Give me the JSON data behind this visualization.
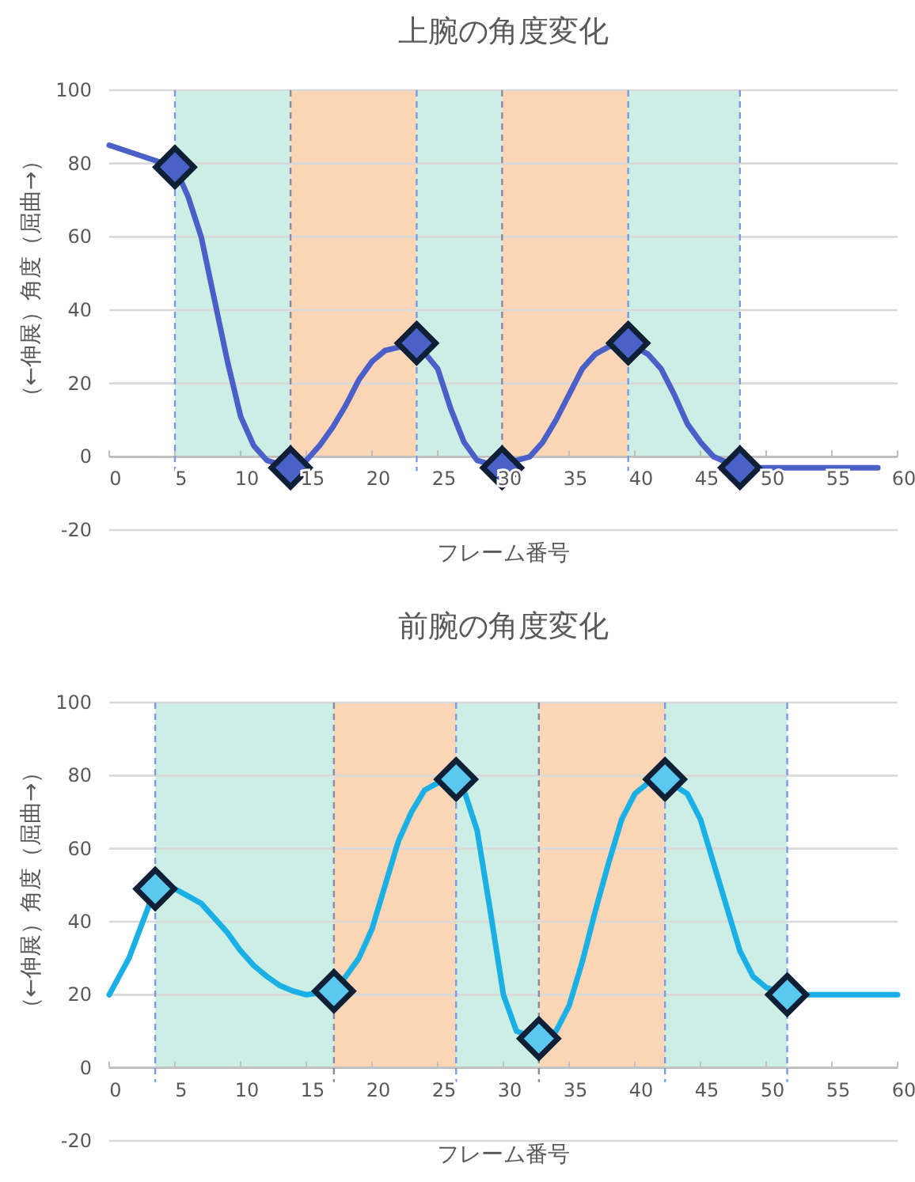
{
  "chart_data": [
    {
      "type": "line",
      "title": "上腕の角度変化",
      "xlabel": "フレーム番号",
      "ylabel": "（←伸展）角度（屈曲→）",
      "xlim": [
        0,
        60
      ],
      "xticks": [
        0,
        5,
        10,
        15,
        20,
        25,
        30,
        35,
        40,
        45,
        50,
        55,
        60
      ],
      "ylim": [
        -20,
        100
      ],
      "yticks": [
        -20,
        0,
        20,
        40,
        60,
        80,
        100
      ],
      "grid": "y",
      "series": [
        {
          "color": "#4a5fc8",
          "marker": "none",
          "x": [
            0,
            5,
            6,
            7,
            8,
            9,
            10,
            11,
            12,
            13.8,
            15,
            16,
            17,
            18,
            19,
            20,
            21,
            23.4,
            25,
            26,
            27,
            28,
            29.9,
            31,
            32,
            33,
            34,
            35,
            36,
            37,
            38,
            39.5,
            41,
            42,
            43,
            44,
            45,
            46,
            48,
            58.5
          ],
          "values": [
            85,
            79,
            71,
            60,
            43,
            26,
            11,
            3,
            -1,
            -3,
            -1,
            3,
            8,
            14,
            21,
            26,
            29,
            31,
            24,
            13,
            4,
            -1,
            -3,
            -1,
            0,
            4,
            10,
            17,
            24,
            28,
            30,
            31,
            28,
            24,
            17,
            9,
            4,
            0,
            -3,
            -3
          ]
        },
        {
          "type": "scatter",
          "color": "#4a62c8",
          "marker": "diamond",
          "x": [
            5,
            13.8,
            23.4,
            29.9,
            39.5,
            48
          ],
          "values": [
            79,
            -3,
            31,
            -3,
            31,
            -3
          ]
        }
      ],
      "bands": [
        {
          "axis": "x",
          "from": 5,
          "to": 13.8,
          "color": "#cdeee4"
        },
        {
          "axis": "x",
          "from": 13.8,
          "to": 23.4,
          "color": "#fbd6b6"
        },
        {
          "axis": "x",
          "from": 23.4,
          "to": 29.9,
          "color": "#cdeee4"
        },
        {
          "axis": "x",
          "from": 29.9,
          "to": 39.5,
          "color": "#fbd6b6"
        },
        {
          "axis": "x",
          "from": 39.5,
          "to": 48,
          "color": "#cdeee4"
        }
      ],
      "ref_lines": [
        {
          "axis": "x",
          "value": 5,
          "color": "#7b9be0",
          "line_style": "dashed"
        },
        {
          "axis": "x",
          "value": 13.8,
          "color": "#8a8aa0",
          "line_style": "dashed"
        },
        {
          "axis": "x",
          "value": 23.4,
          "color": "#7b9be0",
          "line_style": "dashed"
        },
        {
          "axis": "x",
          "value": 29.9,
          "color": "#8a8aa0",
          "line_style": "dashed"
        },
        {
          "axis": "x",
          "value": 39.5,
          "color": "#7b9be0",
          "line_style": "dashed"
        },
        {
          "axis": "x",
          "value": 48,
          "color": "#7b9be0",
          "line_style": "dashed"
        }
      ]
    },
    {
      "type": "line",
      "title": "前腕の角度変化",
      "xlabel": "フレーム番号",
      "ylabel": "（←伸展）角度（屈曲→）",
      "xlim": [
        0,
        60
      ],
      "xticks": [
        0,
        5,
        10,
        15,
        20,
        25,
        30,
        35,
        40,
        45,
        50,
        55,
        60
      ],
      "ylim": [
        -20,
        100
      ],
      "yticks": [
        -20,
        0,
        20,
        40,
        60,
        80,
        100
      ],
      "grid": "y",
      "series": [
        {
          "color": "#1ab0e6",
          "marker": "none",
          "x": [
            0,
            1.5,
            3.5,
            5,
            6,
            7,
            8,
            9,
            10,
            11,
            12,
            13,
            14,
            15,
            17.1,
            18,
            19,
            20,
            21,
            22,
            23,
            24,
            25,
            26.4,
            27,
            28,
            29,
            30,
            31,
            32.7,
            34,
            35,
            36,
            37,
            38,
            39,
            40,
            41,
            42.3,
            44,
            45,
            46,
            47,
            48,
            49,
            50,
            51.6,
            60
          ],
          "values": [
            20,
            30,
            49,
            49,
            47,
            45,
            41,
            37,
            32,
            28,
            25,
            22.5,
            21,
            20,
            21,
            25,
            30,
            38,
            50,
            62,
            70,
            76,
            78,
            79,
            76,
            65,
            43,
            20,
            10,
            8,
            10,
            17,
            29,
            43,
            56,
            68,
            75,
            78,
            79,
            75,
            68,
            56,
            44,
            32,
            25,
            22,
            20,
            20
          ]
        },
        {
          "type": "scatter",
          "color": "#5bc8f0",
          "marker": "diamond",
          "x": [
            3.5,
            17.1,
            26.4,
            32.7,
            42.3,
            51.6
          ],
          "values": [
            49,
            21,
            79,
            8,
            79,
            20
          ]
        }
      ],
      "bands": [
        {
          "axis": "x",
          "from": 3.5,
          "to": 17.1,
          "color": "#cdeee4"
        },
        {
          "axis": "x",
          "from": 17.1,
          "to": 26.4,
          "color": "#fbd6b6"
        },
        {
          "axis": "x",
          "from": 26.4,
          "to": 32.7,
          "color": "#cdeee4"
        },
        {
          "axis": "x",
          "from": 32.7,
          "to": 42.3,
          "color": "#fbd6b6"
        },
        {
          "axis": "x",
          "from": 42.3,
          "to": 51.6,
          "color": "#cdeee4"
        }
      ],
      "ref_lines": [
        {
          "axis": "x",
          "value": 3.5,
          "color": "#7b9be0",
          "line_style": "dashed"
        },
        {
          "axis": "x",
          "value": 17.1,
          "color": "#8a8aa0",
          "line_style": "dashed"
        },
        {
          "axis": "x",
          "value": 26.4,
          "color": "#7b9be0",
          "line_style": "dashed"
        },
        {
          "axis": "x",
          "value": 32.7,
          "color": "#8a8aa0",
          "line_style": "dashed"
        },
        {
          "axis": "x",
          "value": 42.3,
          "color": "#7b9be0",
          "line_style": "dashed"
        },
        {
          "axis": "x",
          "value": 51.6,
          "color": "#7b9be0",
          "line_style": "dashed"
        }
      ]
    }
  ]
}
